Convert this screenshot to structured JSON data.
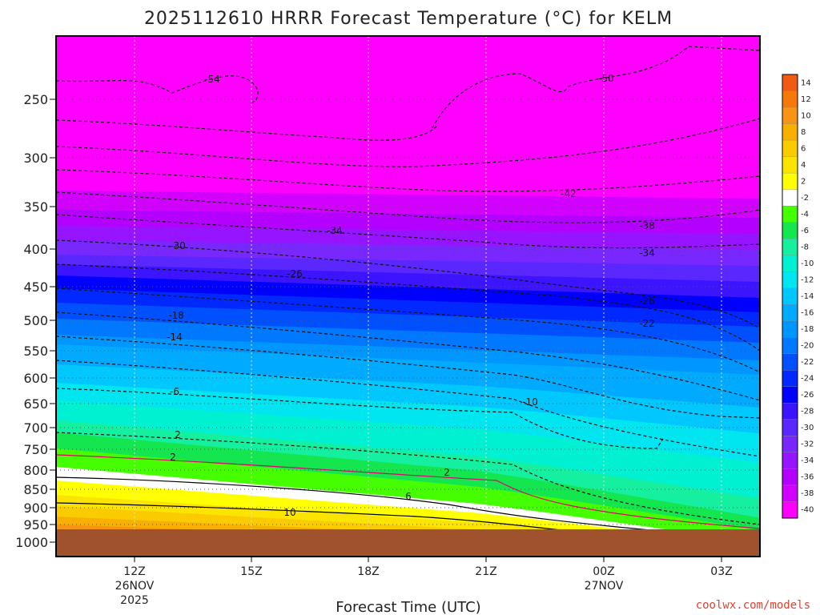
{
  "chart_data": {
    "type": "heatmap",
    "title": "2025112610 HRRR Forecast Temperature (°C) for KELM",
    "xlabel": "Forecast Time (UTC)",
    "ylabel": "",
    "credit": "coolwx.com/models",
    "y_axis": {
      "unit": "hPa",
      "ticks": [
        "250",
        "300",
        "350",
        "400",
        "450",
        "500",
        "550",
        "600",
        "650",
        "700",
        "750",
        "800",
        "850",
        "900",
        "950",
        "1000"
      ],
      "log_scale": true,
      "range": [
        1010,
        205
      ]
    },
    "x_axis": {
      "range": [
        "2025-11-26 10Z",
        "2025-11-27 04Z"
      ],
      "ticks": [
        {
          "label": "12Z",
          "sub": [
            "26NOV",
            "2025"
          ]
        },
        {
          "label": "15Z",
          "sub": []
        },
        {
          "label": "18Z",
          "sub": []
        },
        {
          "label": "21Z",
          "sub": []
        },
        {
          "label": "00Z",
          "sub": [
            "27NOV"
          ]
        },
        {
          "label": "03Z",
          "sub": []
        }
      ]
    },
    "colorbar": {
      "labels": [
        "14",
        "12",
        "10",
        "8",
        "6",
        "4",
        "2",
        "-2",
        "-4",
        "-6",
        "-8",
        "-10",
        "-12",
        "-14",
        "-16",
        "-18",
        "-20",
        "-22",
        "-24",
        "-26",
        "-28",
        "-30",
        "-32",
        "-34",
        "-36",
        "-38",
        "-40"
      ],
      "colors": [
        "#f05a14",
        "#f5780a",
        "#f79414",
        "#f7b000",
        "#facc00",
        "#fbe500",
        "#ffff00",
        "#ffffff",
        "#45ff00",
        "#14e650",
        "#14f0a0",
        "#00f0d2",
        "#00e6f0",
        "#00c8ff",
        "#00aaff",
        "#0096ff",
        "#0078ff",
        "#0050ff",
        "#0028ff",
        "#0000ff",
        "#3c14ff",
        "#5a28ff",
        "#7828ff",
        "#9614ff",
        "#b400ff",
        "#d200ff",
        "#ff00ff"
      ]
    },
    "ground_color": "#a0522d",
    "contour_labels": [
      "-54",
      "-50",
      "-42",
      "-38",
      "-34",
      "-34",
      "-30",
      "-26",
      "-26",
      "-22",
      "-18",
      "-14",
      "-10",
      "-6",
      "2",
      "2",
      "2",
      "6",
      "10"
    ]
  }
}
